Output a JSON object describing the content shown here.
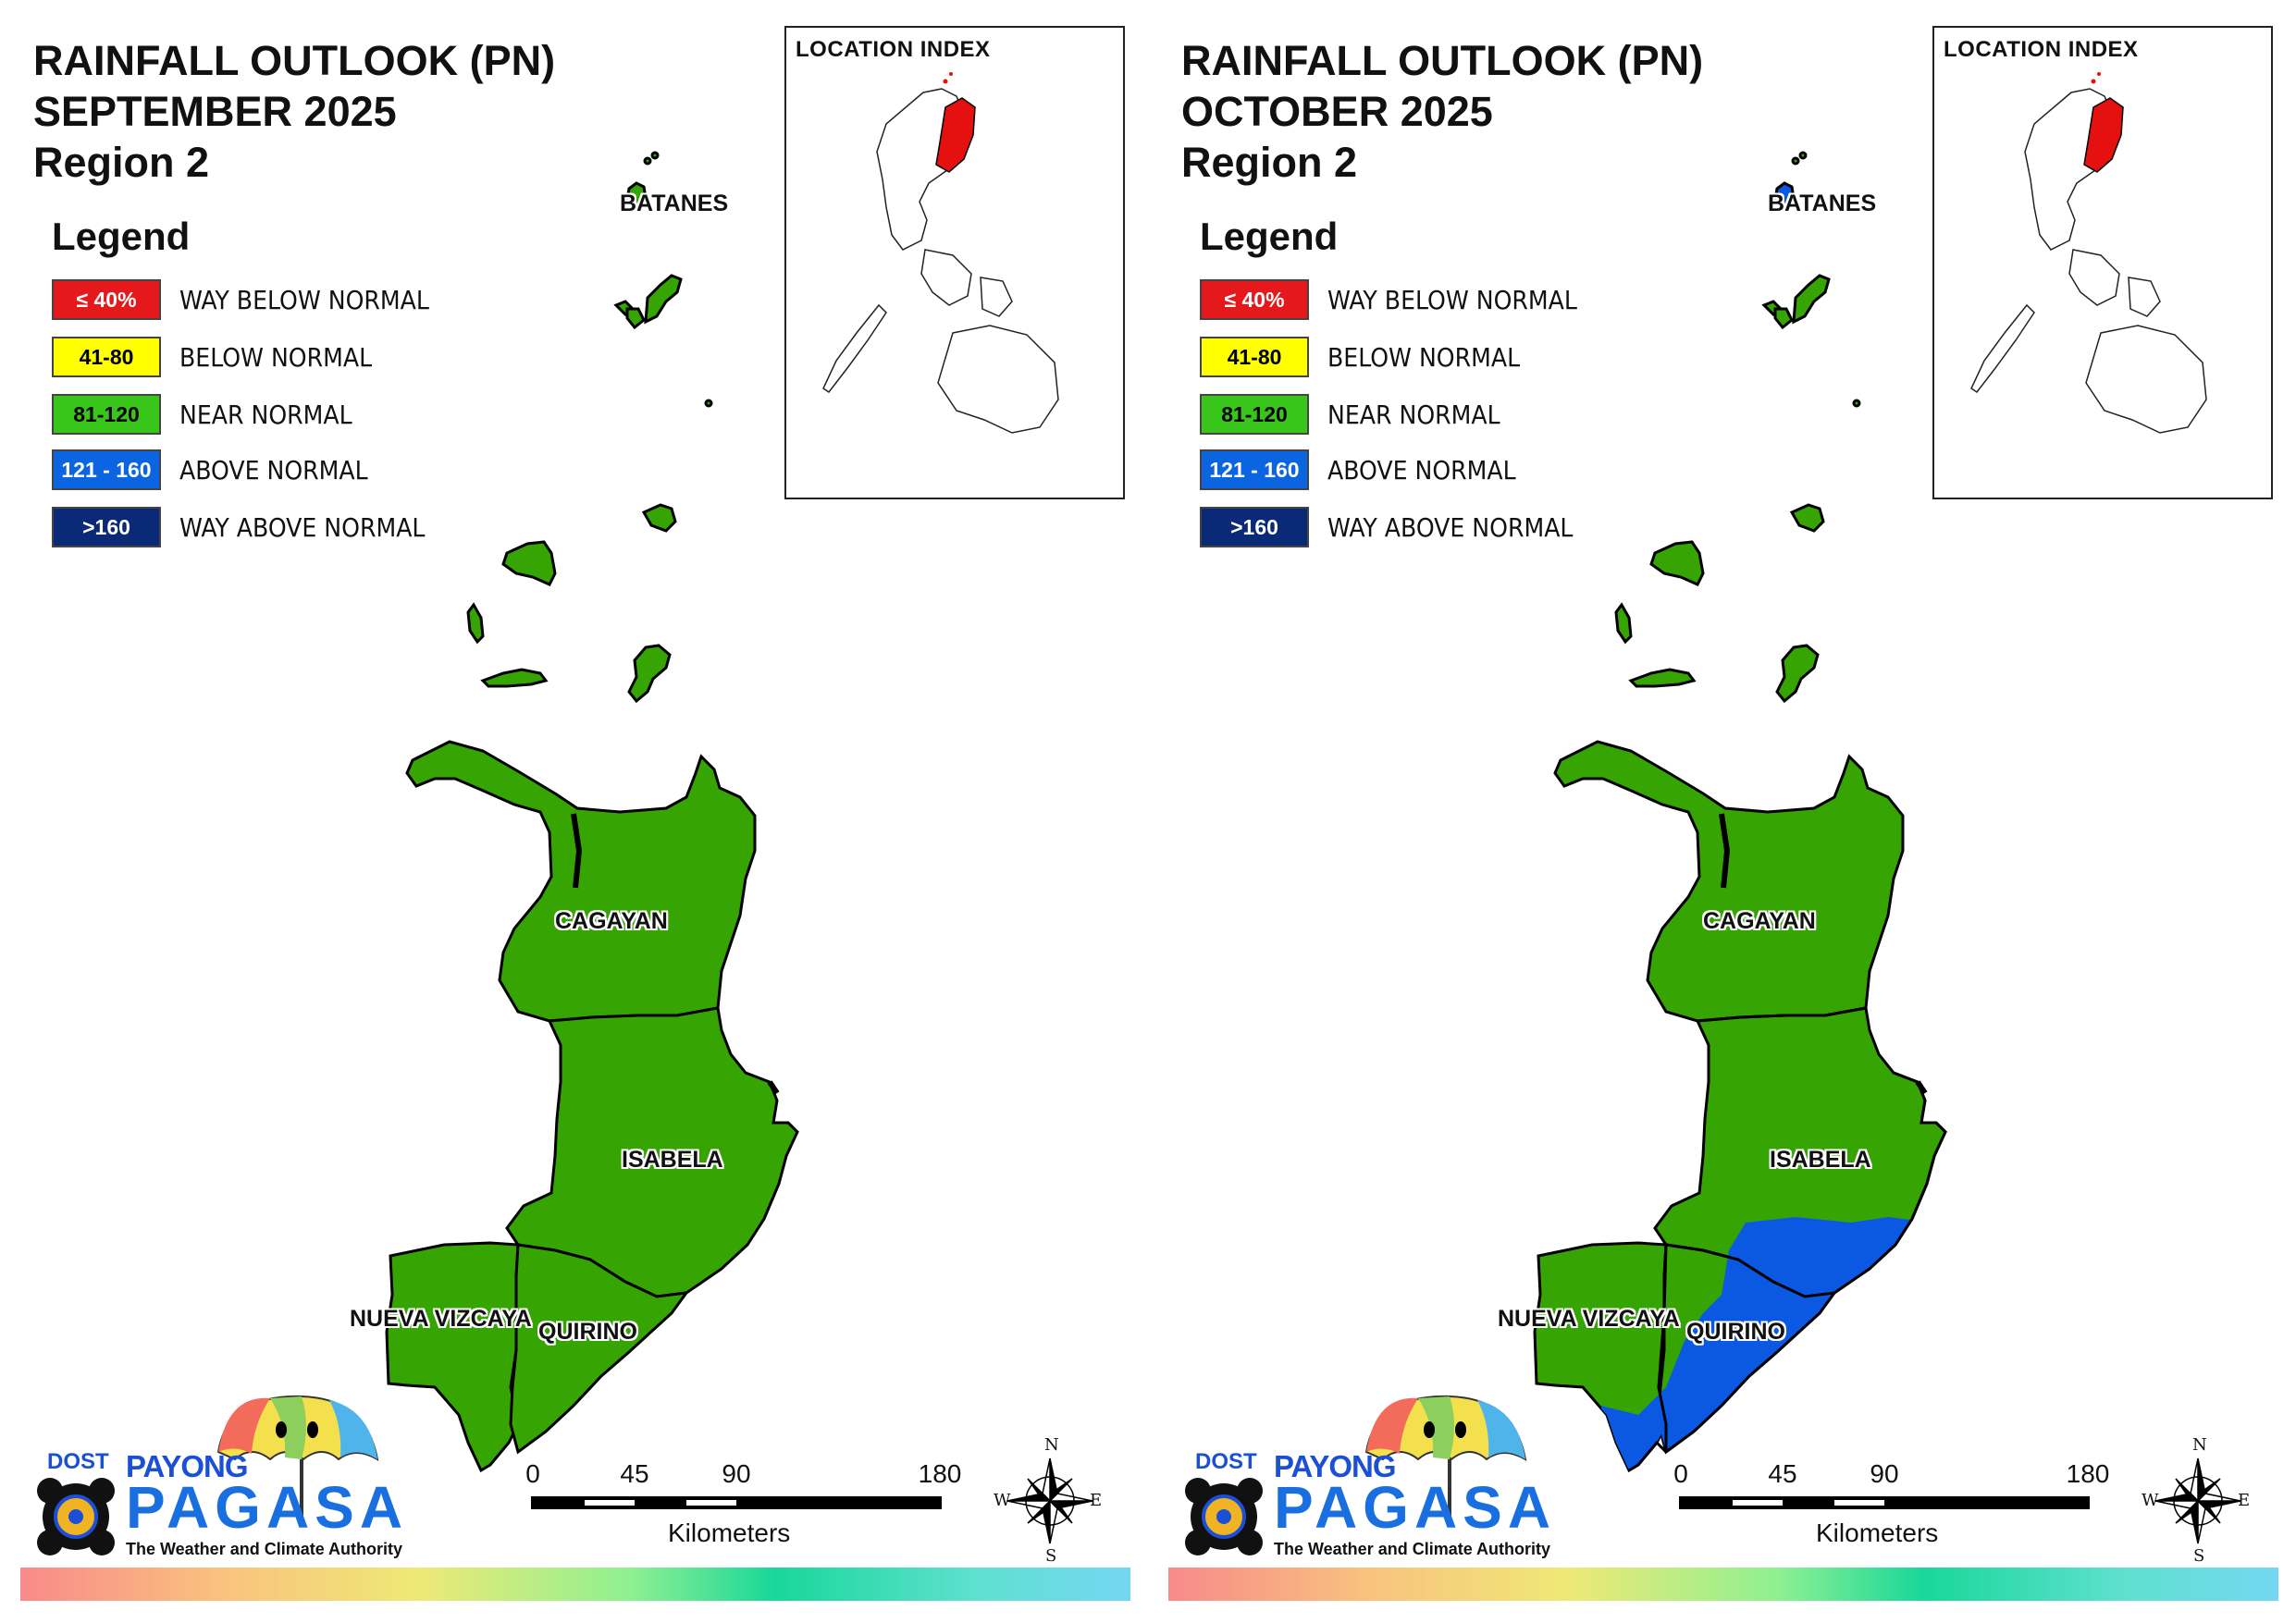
{
  "shared": {
    "legend_title": "Legend",
    "legend": [
      {
        "range": "≤ 40%",
        "label": "WAY BELOW NORMAL",
        "color": "#e5191b",
        "text_color": "#ffffff"
      },
      {
        "range": "41-80",
        "label": "BELOW NORMAL",
        "color": "#ffff00",
        "text_color": "#000000"
      },
      {
        "range": "81-120",
        "label": "NEAR NORMAL",
        "color": "#38c61b",
        "text_color": "#000000"
      },
      {
        "range": "121 - 160",
        "label": "ABOVE NORMAL",
        "color": "#0b64e0",
        "text_color": "#ffffff"
      },
      {
        "range": ">160",
        "label": "WAY ABOVE NORMAL",
        "color": "#0a2a78",
        "text_color": "#ffffff"
      }
    ],
    "inset_title": "LOCATION INDEX",
    "provinces": {
      "batanes": "BATANES",
      "cagayan": "CAGAYAN",
      "isabela": "ISABELA",
      "nueva_vizcaya": "NUEVA VIZCAYA",
      "quirino": "QUIRINO"
    },
    "scale": {
      "ticks": [
        "0",
        "45",
        "90",
        "180"
      ],
      "unit": "Kilometers"
    },
    "compass": {
      "n": "N",
      "s": "S",
      "e": "E",
      "w": "W"
    },
    "logo": {
      "dost": "DOST",
      "payong": "PAYONG",
      "pagasa": "PAGASA",
      "tagline": "The Weather and Climate Authority"
    },
    "colors": {
      "region_fill": "#36a503",
      "above_normal_fill": "#0b58e3",
      "highlight": "#e51010"
    }
  },
  "maps": [
    {
      "title_line1": "RAINFALL OUTLOOK (PN)",
      "title_line2": "SEPTEMBER 2025",
      "title_line3": "Region 2",
      "category": "NEAR NORMAL",
      "above_normal_zone": false
    },
    {
      "title_line1": "RAINFALL OUTLOOK (PN)",
      "title_line2": "OCTOBER 2025",
      "title_line3": "Region 2",
      "category": "NEAR NORMAL",
      "above_normal_zone": true,
      "above_normal_area": "ABOVE NORMAL"
    }
  ]
}
